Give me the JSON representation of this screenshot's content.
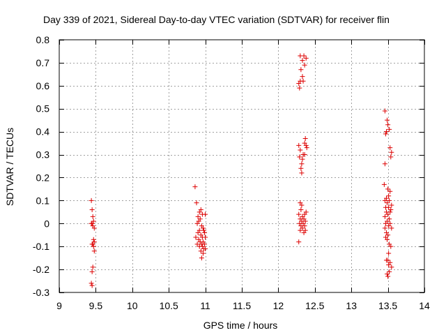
{
  "chart_data": {
    "type": "scatter",
    "title": "Day 339 of 2021, Sidereal Day-to-day VTEC variation (SDTVAR) for receiver flin",
    "xlabel": "GPS time / hours",
    "ylabel": "SDTVAR / TECUs",
    "xlim": [
      9,
      14
    ],
    "ylim": [
      -0.3,
      0.8
    ],
    "xticks": [
      9,
      9.5,
      10,
      10.5,
      11,
      11.5,
      12,
      12.5,
      13,
      13.5,
      14
    ],
    "yticks": [
      -0.3,
      -0.2,
      -0.1,
      0,
      0.1,
      0.2,
      0.3,
      0.4,
      0.5,
      0.6,
      0.7,
      0.8
    ],
    "xtick_labels": [
      "9",
      "9.5",
      "10",
      "10.5",
      "11",
      "11.5",
      "12",
      "12.5",
      "13",
      "13.5",
      "14"
    ],
    "ytick_labels": [
      "-0.3",
      "-0.2",
      "-0.1",
      "0",
      "0.1",
      "0.2",
      "0.3",
      "0.4",
      "0.5",
      "0.6",
      "0.7",
      "0.8"
    ],
    "grid": true,
    "legend": "none",
    "marker": "+",
    "color": "#dd0000",
    "series": [
      {
        "name": "SDTVAR",
        "points": [
          [
            9.44,
            0.1
          ],
          [
            9.45,
            0.06
          ],
          [
            9.46,
            0.03
          ],
          [
            9.47,
            0.01
          ],
          [
            9.44,
            0.0
          ],
          [
            9.46,
            -0.01
          ],
          [
            9.48,
            -0.02
          ],
          [
            9.45,
            0.0
          ],
          [
            9.47,
            -0.07
          ],
          [
            9.48,
            -0.08
          ],
          [
            9.46,
            -0.09
          ],
          [
            9.45,
            -0.09
          ],
          [
            9.47,
            -0.1
          ],
          [
            9.48,
            -0.12
          ],
          [
            9.46,
            -0.19
          ],
          [
            9.45,
            -0.21
          ],
          [
            9.44,
            -0.26
          ],
          [
            9.45,
            -0.27
          ],
          [
            10.86,
            0.16
          ],
          [
            10.88,
            0.09
          ],
          [
            10.92,
            0.05
          ],
          [
            10.94,
            0.06
          ],
          [
            10.9,
            0.03
          ],
          [
            10.96,
            0.04
          ],
          [
            11.0,
            0.04
          ],
          [
            10.91,
            0.01
          ],
          [
            10.93,
            0.02
          ],
          [
            10.89,
            0.0
          ],
          [
            10.95,
            -0.01
          ],
          [
            10.97,
            -0.02
          ],
          [
            10.92,
            -0.03
          ],
          [
            10.98,
            -0.03
          ],
          [
            10.9,
            -0.04
          ],
          [
            10.99,
            -0.04
          ],
          [
            10.94,
            -0.05
          ],
          [
            10.87,
            -0.06
          ],
          [
            10.96,
            -0.06
          ],
          [
            11.0,
            -0.06
          ],
          [
            10.91,
            -0.07
          ],
          [
            10.93,
            -0.08
          ],
          [
            10.97,
            -0.08
          ],
          [
            10.89,
            -0.09
          ],
          [
            10.95,
            -0.09
          ],
          [
            10.99,
            -0.09
          ],
          [
            10.92,
            -0.1
          ],
          [
            10.96,
            -0.1
          ],
          [
            10.98,
            -0.11
          ],
          [
            11.0,
            -0.11
          ],
          [
            10.94,
            -0.12
          ],
          [
            10.97,
            -0.13
          ],
          [
            10.95,
            -0.15
          ],
          [
            12.3,
            0.73
          ],
          [
            12.35,
            0.73
          ],
          [
            12.38,
            0.72
          ],
          [
            12.33,
            0.71
          ],
          [
            12.36,
            0.69
          ],
          [
            12.31,
            0.67
          ],
          [
            12.33,
            0.64
          ],
          [
            12.34,
            0.62
          ],
          [
            12.3,
            0.62
          ],
          [
            12.28,
            0.61
          ],
          [
            12.29,
            0.59
          ],
          [
            12.37,
            0.37
          ],
          [
            12.36,
            0.35
          ],
          [
            12.38,
            0.34
          ],
          [
            12.28,
            0.34
          ],
          [
            12.39,
            0.33
          ],
          [
            12.3,
            0.32
          ],
          [
            12.34,
            0.3
          ],
          [
            12.36,
            0.3
          ],
          [
            12.29,
            0.29
          ],
          [
            12.33,
            0.28
          ],
          [
            12.32,
            0.26
          ],
          [
            12.31,
            0.24
          ],
          [
            12.32,
            0.22
          ],
          [
            12.3,
            0.09
          ],
          [
            12.32,
            0.08
          ],
          [
            12.31,
            0.06
          ],
          [
            12.38,
            0.05
          ],
          [
            12.36,
            0.04
          ],
          [
            12.28,
            0.04
          ],
          [
            12.33,
            0.03
          ],
          [
            12.35,
            0.02
          ],
          [
            12.3,
            0.02
          ],
          [
            12.37,
            0.01
          ],
          [
            12.32,
            0.01
          ],
          [
            12.29,
            0.0
          ],
          [
            12.34,
            0.0
          ],
          [
            12.36,
            -0.01
          ],
          [
            12.31,
            -0.01
          ],
          [
            12.33,
            -0.02
          ],
          [
            12.37,
            -0.03
          ],
          [
            12.3,
            -0.03
          ],
          [
            12.35,
            -0.04
          ],
          [
            12.28,
            -0.08
          ],
          [
            13.46,
            0.49
          ],
          [
            13.49,
            0.45
          ],
          [
            13.5,
            0.43
          ],
          [
            13.52,
            0.41
          ],
          [
            13.48,
            0.4
          ],
          [
            13.47,
            0.39
          ],
          [
            13.53,
            0.33
          ],
          [
            13.55,
            0.31
          ],
          [
            13.54,
            0.29
          ],
          [
            13.46,
            0.26
          ],
          [
            13.45,
            0.17
          ],
          [
            13.5,
            0.15
          ],
          [
            13.53,
            0.14
          ],
          [
            13.51,
            0.12
          ],
          [
            13.48,
            0.11
          ],
          [
            13.46,
            0.1
          ],
          [
            13.52,
            0.1
          ],
          [
            13.49,
            0.09
          ],
          [
            13.55,
            0.08
          ],
          [
            13.47,
            0.07
          ],
          [
            13.51,
            0.07
          ],
          [
            13.54,
            0.06
          ],
          [
            13.48,
            0.05
          ],
          [
            13.53,
            0.05
          ],
          [
            13.5,
            0.04
          ],
          [
            13.46,
            0.03
          ],
          [
            13.52,
            0.02
          ],
          [
            13.49,
            0.01
          ],
          [
            13.47,
            0.0
          ],
          [
            13.53,
            0.0
          ],
          [
            13.51,
            -0.01
          ],
          [
            13.46,
            -0.02
          ],
          [
            13.55,
            -0.02
          ],
          [
            13.48,
            -0.04
          ],
          [
            13.5,
            -0.05
          ],
          [
            13.47,
            -0.06
          ],
          [
            13.49,
            -0.07
          ],
          [
            13.52,
            -0.09
          ],
          [
            13.54,
            -0.1
          ],
          [
            13.51,
            -0.13
          ],
          [
            13.5,
            -0.16
          ],
          [
            13.48,
            -0.16
          ],
          [
            13.53,
            -0.17
          ],
          [
            13.51,
            -0.18
          ],
          [
            13.55,
            -0.19
          ],
          [
            13.52,
            -0.21
          ],
          [
            13.49,
            -0.22
          ],
          [
            13.5,
            -0.23
          ]
        ]
      }
    ]
  }
}
